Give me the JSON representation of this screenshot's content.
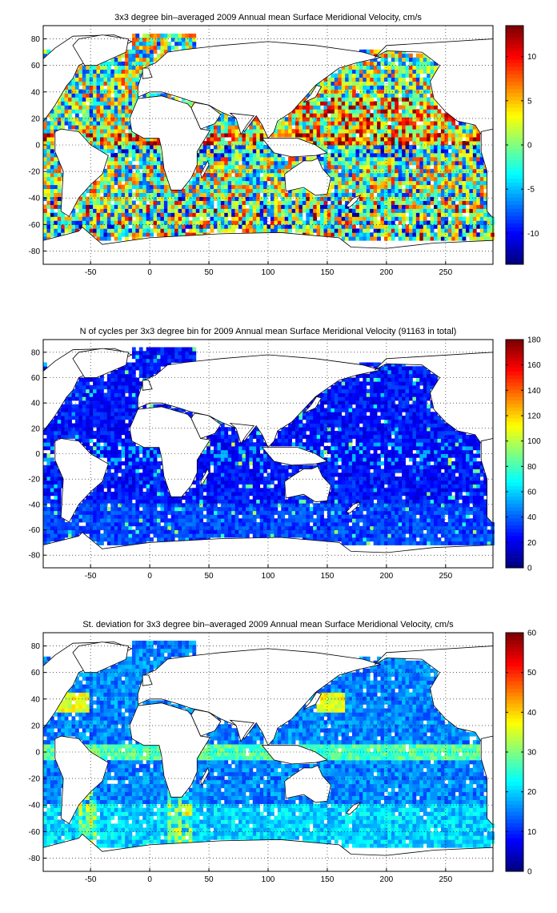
{
  "chart_data": [
    {
      "type": "heatmap",
      "title": "3x3 degree bin–averaged 2009 Annual mean Surface Meridional Velocity, cm/s",
      "xlabel": "",
      "ylabel": "",
      "xlim": [
        -90,
        290
      ],
      "ylim": [
        -90,
        90
      ],
      "x_ticks": [
        -50,
        0,
        50,
        100,
        150,
        200,
        250
      ],
      "y_ticks": [
        -80,
        -60,
        -40,
        -20,
        0,
        20,
        40,
        60,
        80
      ],
      "grid": true,
      "colormap": "jet",
      "colorbar": {
        "min": -13.5,
        "max": 13.5,
        "ticks": [
          -10,
          -5,
          0,
          5,
          10
        ]
      },
      "bin_size_deg": 3
    },
    {
      "type": "heatmap",
      "title": "N of cycles per 3x3 degree bin for 2009 Annual mean Surface Meridional Velocity (91163 in total)",
      "xlabel": "",
      "ylabel": "",
      "xlim": [
        -90,
        290
      ],
      "ylim": [
        -90,
        90
      ],
      "x_ticks": [
        -50,
        0,
        50,
        100,
        150,
        200,
        250
      ],
      "y_ticks": [
        -80,
        -60,
        -40,
        -20,
        0,
        20,
        40,
        60,
        80
      ],
      "grid": true,
      "colormap": "jet",
      "colorbar": {
        "min": 0,
        "max": 180,
        "ticks": [
          0,
          20,
          40,
          60,
          80,
          100,
          120,
          140,
          160,
          180
        ]
      },
      "bin_size_deg": 3
    },
    {
      "type": "heatmap",
      "title": "St. deviation for 3x3 degree bin–averaged 2009 Annual mean Surface Meridional Velocity, cm/s",
      "xlabel": "",
      "ylabel": "",
      "xlim": [
        -90,
        290
      ],
      "ylim": [
        -90,
        90
      ],
      "x_ticks": [
        -50,
        0,
        50,
        100,
        150,
        200,
        250
      ],
      "y_ticks": [
        -80,
        -60,
        -40,
        -20,
        0,
        20,
        40,
        60,
        80
      ],
      "grid": true,
      "colormap": "jet",
      "colorbar": {
        "min": 0,
        "max": 60,
        "ticks": [
          0,
          10,
          20,
          30,
          40,
          50,
          60
        ]
      },
      "bin_size_deg": 3
    }
  ]
}
